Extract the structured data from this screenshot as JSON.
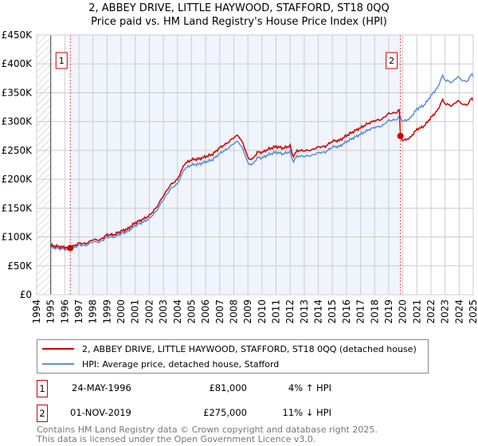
{
  "chart_data": {
    "type": "line",
    "title": "2, ABBEY DRIVE, LITTLE HAYWOOD, STAFFORD, ST18 0QQ",
    "subtitle": "Price paid vs. HM Land Registry's House Price Index (HPI)",
    "xlim": [
      1994,
      2025
    ],
    "ylim": [
      0,
      450000
    ],
    "x_ticks": [
      "1994",
      "1995",
      "1996",
      "1997",
      "1998",
      "1999",
      "2000",
      "2001",
      "2002",
      "2003",
      "2004",
      "2005",
      "2006",
      "2007",
      "2008",
      "2009",
      "2010",
      "2011",
      "2012",
      "2013",
      "2014",
      "2015",
      "2016",
      "2017",
      "2018",
      "2019",
      "2020",
      "2021",
      "2022",
      "2023",
      "2024",
      "2025"
    ],
    "y_ticks": [
      {
        "v": 0,
        "label": "£0"
      },
      {
        "v": 50000,
        "label": "£50K"
      },
      {
        "v": 100000,
        "label": "£100K"
      },
      {
        "v": 150000,
        "label": "£150K"
      },
      {
        "v": 200000,
        "label": "£200K"
      },
      {
        "v": 250000,
        "label": "£250K"
      },
      {
        "v": 300000,
        "label": "£300K"
      },
      {
        "v": 350000,
        "label": "£350K"
      },
      {
        "v": 400000,
        "label": "£400K"
      },
      {
        "v": 450000,
        "label": "£450K"
      }
    ],
    "grid": true,
    "hpi_points": [
      [
        1995,
        82
      ],
      [
        1996,
        79
      ],
      [
        1996.4,
        78
      ],
      [
        1997,
        86
      ],
      [
        1997.5,
        85
      ],
      [
        1998,
        92
      ],
      [
        1998.5,
        91
      ],
      [
        1999,
        100
      ],
      [
        1999.5,
        100
      ],
      [
        2000,
        106
      ],
      [
        2000.5,
        110
      ],
      [
        2001,
        120
      ],
      [
        2001.5,
        125
      ],
      [
        2002,
        132
      ],
      [
        2002.5,
        145
      ],
      [
        2003,
        165
      ],
      [
        2003.5,
        183
      ],
      [
        2004,
        192
      ],
      [
        2004.5,
        218
      ],
      [
        2005,
        225
      ],
      [
        2005.5,
        226
      ],
      [
        2006,
        230
      ],
      [
        2006.5,
        234
      ],
      [
        2007,
        245
      ],
      [
        2007.5,
        252
      ],
      [
        2008,
        262
      ],
      [
        2008.3,
        266
      ],
      [
        2008.7,
        250
      ],
      [
        2009,
        228
      ],
      [
        2009.3,
        225
      ],
      [
        2009.7,
        238
      ],
      [
        2010,
        237
      ],
      [
        2010.5,
        243
      ],
      [
        2011,
        247
      ],
      [
        2011.5,
        244
      ],
      [
        2012,
        248
      ],
      [
        2012.2,
        230
      ],
      [
        2012.5,
        240
      ],
      [
        2013,
        240
      ],
      [
        2013.5,
        241
      ],
      [
        2014,
        246
      ],
      [
        2014.5,
        247
      ],
      [
        2015,
        256
      ],
      [
        2015.5,
        257
      ],
      [
        2016,
        265
      ],
      [
        2016.5,
        272
      ],
      [
        2017,
        278
      ],
      [
        2017.5,
        285
      ],
      [
        2018,
        290
      ],
      [
        2018.5,
        292
      ],
      [
        2019,
        302
      ],
      [
        2019.5,
        303
      ],
      [
        2019.8,
        309
      ],
      [
        2020,
        300
      ],
      [
        2020.5,
        305
      ],
      [
        2021,
        322
      ],
      [
        2021.5,
        328
      ],
      [
        2022,
        345
      ],
      [
        2022.5,
        360
      ],
      [
        2022.8,
        380
      ],
      [
        2023,
        372
      ],
      [
        2023.5,
        368
      ],
      [
        2023.9,
        378
      ],
      [
        2024.3,
        370
      ],
      [
        2024.6,
        370
      ],
      [
        2024.9,
        384
      ],
      [
        2025,
        378
      ]
    ],
    "price_ratio_before_sale2": 1.04,
    "price_ratio_after_sale2": 0.89,
    "series": [
      {
        "name": "2, ABBEY DRIVE, LITTLE HAYWOOD, STAFFORD, ST18 0QQ (detached house)",
        "color": "#cc0000"
      },
      {
        "name": "HPI: Average price, detached house, Stafford",
        "color": "#5b8fd4"
      }
    ],
    "sales": [
      {
        "id": "1",
        "x": 1996.39,
        "price": 81000,
        "date": "24-MAY-1996",
        "price_label": "£81,000",
        "hpi": "4% ↑ HPI"
      },
      {
        "id": "2",
        "x": 2019.83,
        "price": 275000,
        "date": "01-NOV-2019",
        "price_label": "£275,000",
        "hpi": "11% ↓ HPI"
      }
    ]
  },
  "footer": {
    "line1": "Contains HM Land Registry data © Crown copyright and database right 2025.",
    "line2": "This data is licensed under the Open Government Licence v3.0."
  }
}
